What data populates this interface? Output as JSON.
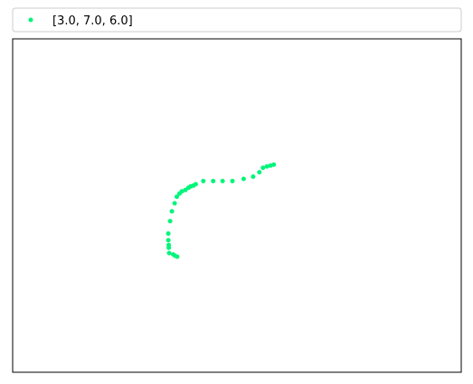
{
  "chart_data": {
    "type": "scatter",
    "title": "",
    "xlabel": "",
    "ylabel": "",
    "xticks": [],
    "yticks": [],
    "grid": false,
    "legend": {
      "placement": "top-left-outside"
    },
    "series": [
      {
        "name": "[3.0, 7.0, 6.0]",
        "color": "#00f57a",
        "marker": "circle",
        "points": [
          [
            0.582,
            0.217
          ],
          [
            0.575,
            0.215
          ],
          [
            0.567,
            0.213
          ],
          [
            0.558,
            0.21
          ],
          [
            0.55,
            0.2
          ],
          [
            0.536,
            0.19
          ],
          [
            0.515,
            0.185
          ],
          [
            0.49,
            0.18
          ],
          [
            0.468,
            0.18
          ],
          [
            0.447,
            0.18
          ],
          [
            0.425,
            0.18
          ],
          [
            0.408,
            0.173
          ],
          [
            0.403,
            0.17
          ],
          [
            0.397,
            0.168
          ],
          [
            0.392,
            0.165
          ],
          [
            0.385,
            0.16
          ],
          [
            0.377,
            0.157
          ],
          [
            0.372,
            0.152
          ],
          [
            0.366,
            0.145
          ],
          [
            0.361,
            0.13
          ],
          [
            0.355,
            0.112
          ],
          [
            0.351,
            0.09
          ],
          [
            0.347,
            0.062
          ],
          [
            0.347,
            0.047
          ],
          [
            0.348,
            0.036
          ],
          [
            0.348,
            0.03
          ],
          [
            0.349,
            0.018
          ],
          [
            0.358,
            0.015
          ],
          [
            0.362,
            0.012
          ],
          [
            0.367,
            0.01
          ]
        ]
      }
    ],
    "xlim": [
      0.0,
      1.0
    ],
    "ylim": [
      -0.25,
      0.5
    ]
  }
}
